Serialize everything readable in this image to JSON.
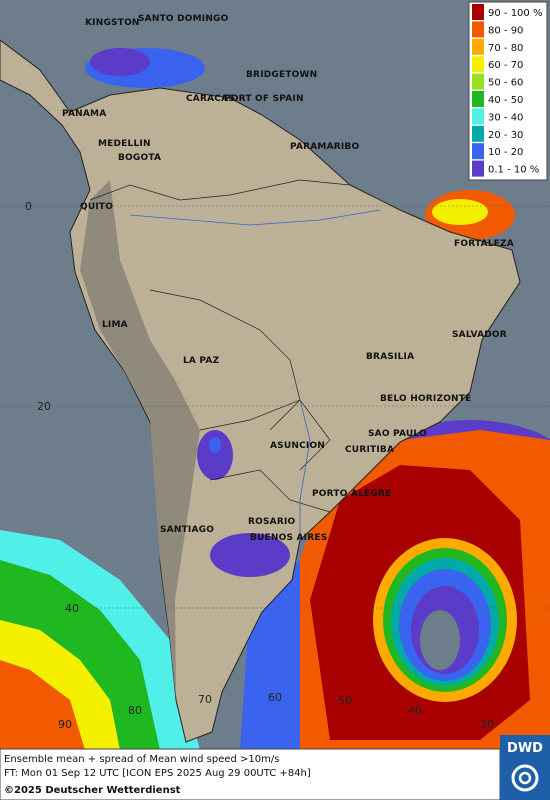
{
  "legend": {
    "items": [
      {
        "label": "90 - 100 %",
        "color": "#a80000"
      },
      {
        "label": "80 - 90",
        "color": "#f25a00"
      },
      {
        "label": "70 - 80",
        "color": "#ffaa00"
      },
      {
        "label": "60 - 70",
        "color": "#f4f000"
      },
      {
        "label": "50 - 60",
        "color": "#98e020"
      },
      {
        "label": "40 - 50",
        "color": "#20b820"
      },
      {
        "label": "30 - 40",
        "color": "#50f0e8"
      },
      {
        "label": "20 - 30",
        "color": "#00aaa8"
      },
      {
        "label": "10 - 20",
        "color": "#3a64f0"
      },
      {
        "label": "0.1 - 10 %",
        "color": "#5a3cc8"
      }
    ]
  },
  "cities": [
    "KINGSTON",
    "SANTO DOMINGO",
    "BRIDGETOWN",
    "CARACAS",
    "PORT OF SPAIN",
    "PANAMA",
    "MEDELLIN",
    "BOGOTA",
    "PARAMARIBO",
    "QUITO",
    "FORTALEZA",
    "LIMA",
    "SALVADOR",
    "LA PAZ",
    "BRASILIA",
    "BELO HORIZONTE",
    "SAO PAULO",
    "ASUNCION",
    "CURITIBA",
    "PORTO ALEGRE",
    "ROSARIO",
    "BUENOS AIRES",
    "SANTIAGO"
  ],
  "grid_labels": [
    0,
    20,
    40,
    90,
    80,
    70,
    60,
    50,
    40,
    30
  ],
  "footer": {
    "line1": "Ensemble mean + spread of Mean wind speed >10m/s",
    "line2": "FT: Mon 01 Sep 12 UTC [ICON EPS 2025 Aug 29 00UTC +84h]",
    "copyright": "©2025 Deutscher Wetterdienst"
  },
  "logo": "DWD"
}
